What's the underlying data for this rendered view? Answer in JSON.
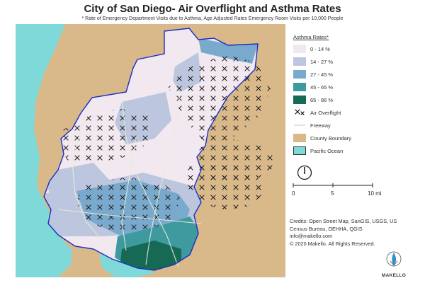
{
  "header": {
    "title": "City of San Diego- Air Overflight and Asthma Rates",
    "subtitle": "* Rate of Emergency Department Visits due to Asthma, Age Adjusted Rates Emergency Room Visits per 10,000 People"
  },
  "legend": {
    "title": "Asthma Rates*",
    "items": [
      {
        "label": "0 - 14 %",
        "color": "#f2e8ef"
      },
      {
        "label": "14 - 27 %",
        "color": "#bcc6de"
      },
      {
        "label": "27 - 45 %",
        "color": "#79a9cc"
      },
      {
        "label": "45 - 65 %",
        "color": "#3e9a9f"
      },
      {
        "label": "65 - 86 %",
        "color": "#166a55"
      }
    ],
    "overflight_label": "Air Overflight",
    "freeway_label": "Freeway",
    "county_label": "County Boundary",
    "ocean_label": "Pacific Ocean",
    "county_color": "#d9b98a",
    "ocean_color": "#7ed9d8",
    "boundary_color": "#1a2fc0"
  },
  "scale_bar": {
    "ticks": [
      "0",
      "5",
      "10 mi"
    ]
  },
  "credits": [
    "Credits: Open Street Map, SanGIS, USGS, US",
    "Census Bureau, OEHHA, QGIS",
    "info@makello.com",
    "© 2020 Makello. All Rights Reserved."
  ],
  "logo": {
    "text": "MAKELLO"
  }
}
